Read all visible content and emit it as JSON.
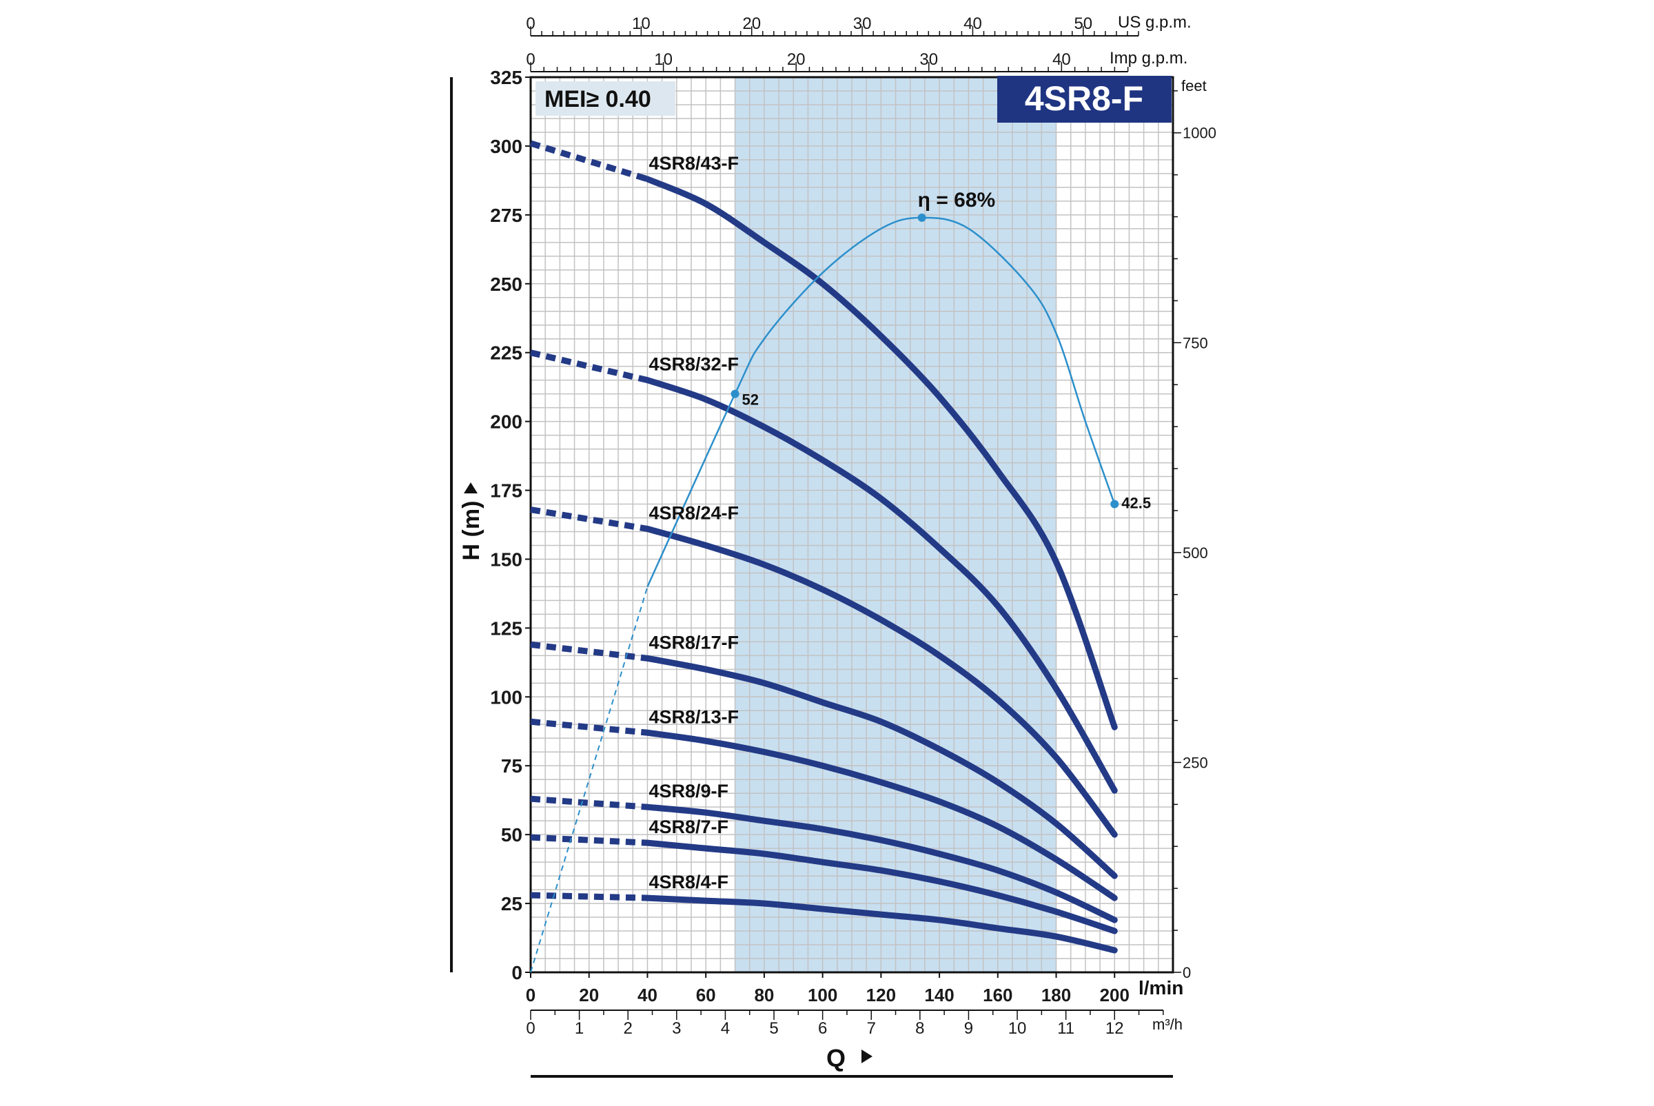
{
  "chart_data": {
    "type": "line",
    "badge": "MEI≥ 0.40",
    "model_title": "4SR8-F",
    "ylabel": "H (m)",
    "xlabel": "Q",
    "x_unit": "l/min",
    "y_right_unit": "feet",
    "top_scale_1_unit": "US g.p.m.",
    "top_scale_2_unit": "Imp g.p.m.",
    "bottom_scale_2_unit": "m³/h",
    "xlim": [
      0,
      220
    ],
    "ylim": [
      0,
      325
    ],
    "x_ticks": [
      "0",
      "20",
      "40",
      "60",
      "80",
      "100",
      "120",
      "140",
      "160",
      "180",
      "200"
    ],
    "y_ticks": [
      "0",
      "25",
      "50",
      "75",
      "100",
      "125",
      "150",
      "175",
      "200",
      "225",
      "250",
      "275",
      "300",
      "325"
    ],
    "feet_ticks": [
      "0",
      "250",
      "500",
      "750",
      "1000"
    ],
    "us_gpm_ticks": [
      "0",
      "10",
      "20",
      "30",
      "40",
      "50"
    ],
    "imp_gpm_ticks": [
      "0",
      "10",
      "20",
      "30",
      "40"
    ],
    "m3h_ticks": [
      "0",
      "1",
      "2",
      "3",
      "4",
      "5",
      "6",
      "7",
      "8",
      "9",
      "10",
      "11",
      "12"
    ],
    "operating_range": [
      70,
      180
    ],
    "series": [
      {
        "name": "4SR8/43-F",
        "values": [
          [
            0,
            301
          ],
          [
            40,
            288
          ],
          [
            60,
            279
          ],
          [
            80,
            265
          ],
          [
            100,
            250
          ],
          [
            120,
            231
          ],
          [
            140,
            209
          ],
          [
            160,
            182
          ],
          [
            180,
            149
          ],
          [
            200,
            89
          ]
        ]
      },
      {
        "name": "4SR8/32-F",
        "values": [
          [
            0,
            225
          ],
          [
            40,
            215
          ],
          [
            60,
            208
          ],
          [
            80,
            198
          ],
          [
            100,
            186
          ],
          [
            120,
            172
          ],
          [
            140,
            154
          ],
          [
            160,
            133
          ],
          [
            180,
            103
          ],
          [
            200,
            66
          ]
        ]
      },
      {
        "name": "4SR8/24-F",
        "values": [
          [
            0,
            168
          ],
          [
            40,
            161
          ],
          [
            60,
            155
          ],
          [
            80,
            148
          ],
          [
            100,
            139
          ],
          [
            120,
            128
          ],
          [
            140,
            115
          ],
          [
            160,
            99
          ],
          [
            180,
            78
          ],
          [
            200,
            50
          ]
        ]
      },
      {
        "name": "4SR8/17-F",
        "values": [
          [
            0,
            119
          ],
          [
            40,
            114
          ],
          [
            60,
            110
          ],
          [
            80,
            105
          ],
          [
            100,
            98
          ],
          [
            120,
            91
          ],
          [
            140,
            81
          ],
          [
            160,
            69
          ],
          [
            180,
            54
          ],
          [
            200,
            35
          ]
        ]
      },
      {
        "name": "4SR8/13-F",
        "values": [
          [
            0,
            91
          ],
          [
            40,
            87
          ],
          [
            60,
            84
          ],
          [
            80,
            80
          ],
          [
            100,
            75
          ],
          [
            120,
            69
          ],
          [
            140,
            62
          ],
          [
            160,
            53
          ],
          [
            180,
            41
          ],
          [
            200,
            27
          ]
        ]
      },
      {
        "name": "4SR8/9-F",
        "values": [
          [
            0,
            63
          ],
          [
            40,
            60
          ],
          [
            60,
            58
          ],
          [
            80,
            55
          ],
          [
            100,
            52
          ],
          [
            120,
            48
          ],
          [
            140,
            43
          ],
          [
            160,
            37
          ],
          [
            180,
            29
          ],
          [
            200,
            19
          ]
        ]
      },
      {
        "name": "4SR8/7-F",
        "values": [
          [
            0,
            49
          ],
          [
            40,
            47
          ],
          [
            60,
            45
          ],
          [
            80,
            43
          ],
          [
            100,
            40
          ],
          [
            120,
            37
          ],
          [
            140,
            33
          ],
          [
            160,
            28
          ],
          [
            180,
            22
          ],
          [
            200,
            15
          ]
        ]
      },
      {
        "name": "4SR8/4-F",
        "values": [
          [
            0,
            28
          ],
          [
            40,
            27
          ],
          [
            60,
            26
          ],
          [
            80,
            25
          ],
          [
            100,
            23
          ],
          [
            120,
            21
          ],
          [
            140,
            19
          ],
          [
            160,
            16
          ],
          [
            180,
            13
          ],
          [
            200,
            8
          ]
        ]
      }
    ],
    "efficiency_curve": {
      "points": [
        [
          0,
          0
        ],
        [
          40,
          140
        ],
        [
          70,
          210
        ],
        [
          80,
          230
        ],
        [
          100,
          254
        ],
        [
          120,
          270
        ],
        [
          134,
          274
        ],
        [
          150,
          270
        ],
        [
          170,
          250
        ],
        [
          180,
          232
        ],
        [
          190,
          200
        ],
        [
          200,
          170
        ]
      ],
      "annotations": [
        {
          "label": "η = 68%",
          "x": 134,
          "y": 274
        },
        {
          "label": "52",
          "x": 70,
          "y": 210
        },
        {
          "label": "42.5",
          "x": 200,
          "y": 170
        }
      ]
    }
  }
}
